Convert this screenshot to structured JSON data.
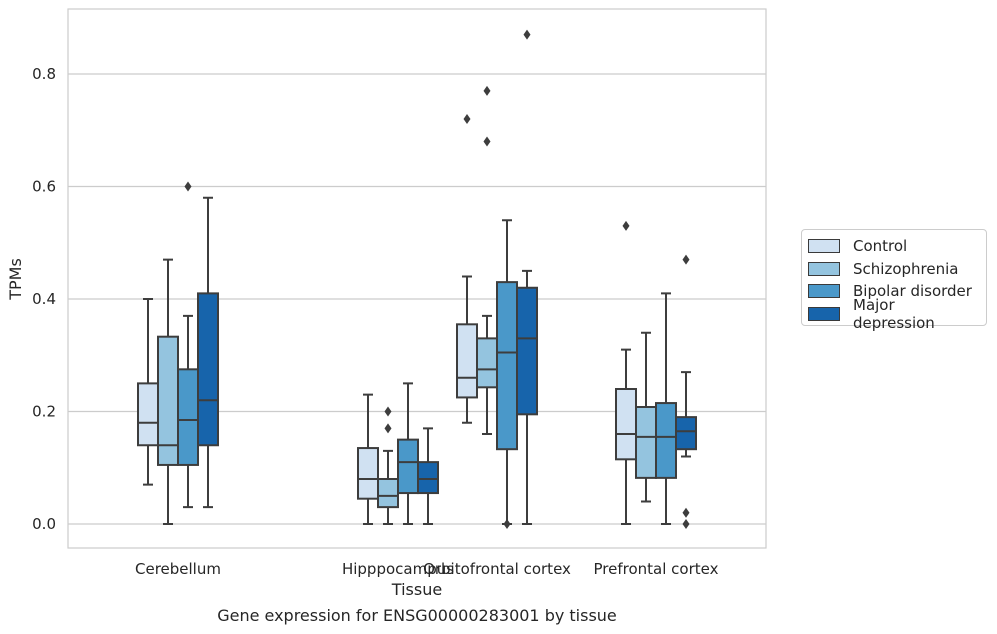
{
  "chart_data": {
    "type": "box",
    "xlabel": "Tissue",
    "ylabel": "TPMs",
    "caption": "Gene expression for ENSG00000283001 by tissue",
    "ylim": [
      -0.04,
      0.92
    ],
    "yticks": [
      "0.0",
      "0.2",
      "0.4",
      "0.6",
      "0.8"
    ],
    "grid": "horizontal",
    "legend_position": "right",
    "categories": [
      "Cerebellum",
      "Hipppocampus",
      "Orbitofrontal cortex",
      "Prefrontal cortex"
    ],
    "series": [
      {
        "name": "Control",
        "color": "#d0e1f2",
        "boxes": [
          {
            "whislo": 0.07,
            "q1": 0.14,
            "med": 0.18,
            "q3": 0.25,
            "whishi": 0.4,
            "fliers": []
          },
          {
            "whislo": 0.0,
            "q1": 0.045,
            "med": 0.08,
            "q3": 0.135,
            "whishi": 0.23,
            "fliers": []
          },
          {
            "whislo": 0.18,
            "q1": 0.225,
            "med": 0.26,
            "q3": 0.355,
            "whishi": 0.44,
            "fliers": [
              0.72
            ]
          },
          {
            "whislo": 0.0,
            "q1": 0.115,
            "med": 0.16,
            "q3": 0.24,
            "whishi": 0.31,
            "fliers": [
              0.53
            ]
          }
        ]
      },
      {
        "name": "Schizophrenia",
        "color": "#94c4df",
        "boxes": [
          {
            "whislo": 0.0,
            "q1": 0.105,
            "med": 0.14,
            "q3": 0.333,
            "whishi": 0.47,
            "fliers": []
          },
          {
            "whislo": 0.0,
            "q1": 0.03,
            "med": 0.05,
            "q3": 0.08,
            "whishi": 0.13,
            "fliers": [
              0.17,
              0.2
            ]
          },
          {
            "whislo": 0.16,
            "q1": 0.243,
            "med": 0.275,
            "q3": 0.33,
            "whishi": 0.37,
            "fliers": [
              0.68,
              0.77
            ]
          },
          {
            "whislo": 0.04,
            "q1": 0.082,
            "med": 0.155,
            "q3": 0.208,
            "whishi": 0.34,
            "fliers": []
          }
        ]
      },
      {
        "name": "Bipolar disorder",
        "color": "#4a98c9",
        "boxes": [
          {
            "whislo": 0.03,
            "q1": 0.105,
            "med": 0.185,
            "q3": 0.275,
            "whishi": 0.37,
            "fliers": [
              0.6
            ]
          },
          {
            "whislo": 0.0,
            "q1": 0.055,
            "med": 0.11,
            "q3": 0.15,
            "whishi": 0.25,
            "fliers": []
          },
          {
            "whislo": 0.0,
            "q1": 0.133,
            "med": 0.305,
            "q3": 0.43,
            "whishi": 0.54,
            "fliers": [
              0.0
            ]
          },
          {
            "whislo": 0.0,
            "q1": 0.082,
            "med": 0.155,
            "q3": 0.215,
            "whishi": 0.41,
            "fliers": []
          }
        ]
      },
      {
        "name": "Major depression",
        "color": "#1764ab",
        "boxes": [
          {
            "whislo": 0.03,
            "q1": 0.14,
            "med": 0.22,
            "q3": 0.41,
            "whishi": 0.58,
            "fliers": []
          },
          {
            "whislo": 0.0,
            "q1": 0.055,
            "med": 0.08,
            "q3": 0.11,
            "whishi": 0.17,
            "fliers": []
          },
          {
            "whislo": 0.0,
            "q1": 0.195,
            "med": 0.33,
            "q3": 0.42,
            "whishi": 0.45,
            "fliers": [
              0.87
            ]
          },
          {
            "whislo": 0.12,
            "q1": 0.133,
            "med": 0.165,
            "q3": 0.19,
            "whishi": 0.27,
            "fliers": [
              0.0,
              0.02,
              0.47
            ]
          }
        ]
      }
    ]
  }
}
